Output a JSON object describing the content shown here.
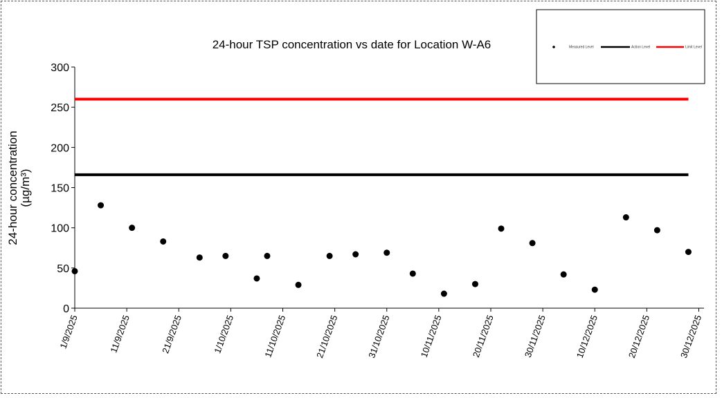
{
  "chart_data": {
    "type": "scatter",
    "title": "24-hour TSP concentration vs date for Location W-A6",
    "ylabel": "24-hour concentration",
    "ylabel_unit": "(µg/m³)",
    "xlabel": "",
    "ylim": [
      0,
      300
    ],
    "yticks": [
      0,
      50,
      100,
      150,
      200,
      250,
      300
    ],
    "xlim": [
      "2025-09-01",
      "2025-12-31"
    ],
    "xticks": [
      {
        "date": "2025-09-01",
        "label": "1/9/2025"
      },
      {
        "date": "2025-09-11",
        "label": "11/9/2025"
      },
      {
        "date": "2025-09-21",
        "label": "21/9/2025"
      },
      {
        "date": "2025-10-01",
        "label": "1/10/2025"
      },
      {
        "date": "2025-10-11",
        "label": "11/10/2025"
      },
      {
        "date": "2025-10-21",
        "label": "21/10/2025"
      },
      {
        "date": "2025-10-31",
        "label": "31/10/2025"
      },
      {
        "date": "2025-11-10",
        "label": "10/11/2025"
      },
      {
        "date": "2025-11-20",
        "label": "20/11/2025"
      },
      {
        "date": "2025-11-30",
        "label": "30/11/2025"
      },
      {
        "date": "2025-12-10",
        "label": "10/12/2025"
      },
      {
        "date": "2025-12-20",
        "label": "20/12/2025"
      },
      {
        "date": "2025-12-30",
        "label": "30/12/2025"
      }
    ],
    "grid": false,
    "legend_placement": "top-right",
    "series": [
      {
        "name": "Measured Level",
        "kind": "points",
        "color": "#000000",
        "points": [
          {
            "x": "2025-09-01",
            "y": 46
          },
          {
            "x": "2025-09-06",
            "y": 128
          },
          {
            "x": "2025-09-12",
            "y": 100
          },
          {
            "x": "2025-09-18",
            "y": 83
          },
          {
            "x": "2025-09-25",
            "y": 63
          },
          {
            "x": "2025-09-30",
            "y": 65
          },
          {
            "x": "2025-10-06",
            "y": 37
          },
          {
            "x": "2025-10-08",
            "y": 65
          },
          {
            "x": "2025-10-14",
            "y": 29
          },
          {
            "x": "2025-10-20",
            "y": 65
          },
          {
            "x": "2025-10-25",
            "y": 67
          },
          {
            "x": "2025-10-31",
            "y": 69
          },
          {
            "x": "2025-11-05",
            "y": 43
          },
          {
            "x": "2025-11-11",
            "y": 18
          },
          {
            "x": "2025-11-17",
            "y": 30
          },
          {
            "x": "2025-11-22",
            "y": 99
          },
          {
            "x": "2025-11-28",
            "y": 81
          },
          {
            "x": "2025-12-04",
            "y": 42
          },
          {
            "x": "2025-12-10",
            "y": 23
          },
          {
            "x": "2025-12-16",
            "y": 113
          },
          {
            "x": "2025-12-22",
            "y": 97
          },
          {
            "x": "2025-12-28",
            "y": 70
          }
        ]
      },
      {
        "name": "Action Level",
        "kind": "line",
        "color": "#000000",
        "points": [
          {
            "x": "2025-09-01",
            "y": 166
          },
          {
            "x": "2025-12-28",
            "y": 166
          }
        ]
      },
      {
        "name": "Limit Level",
        "kind": "line",
        "color": "#ff0000",
        "points": [
          {
            "x": "2025-09-01",
            "y": 260
          },
          {
            "x": "2025-12-28",
            "y": 260
          }
        ]
      }
    ]
  }
}
